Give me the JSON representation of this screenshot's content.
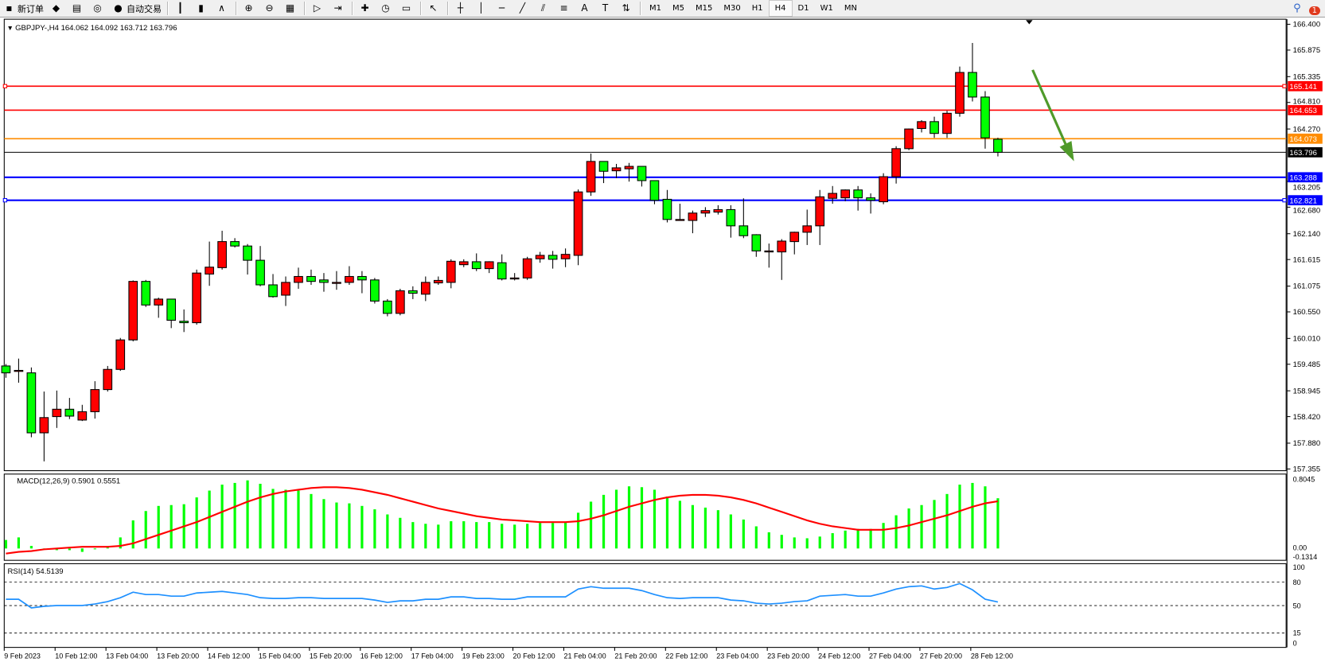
{
  "toolbar": {
    "items": [
      {
        "label": "新订单",
        "icon": "new-order-icon",
        "glyph": "▪"
      },
      {
        "label": "",
        "icon": "market-watch-icon",
        "glyph": "◆"
      },
      {
        "label": "",
        "icon": "data-window-icon",
        "glyph": "▤"
      },
      {
        "label": "",
        "icon": "signals-icon",
        "glyph": "◎"
      },
      {
        "label": "自动交易",
        "icon": "auto-trading-icon",
        "glyph": "●"
      },
      {
        "label": "",
        "icon": "bar-chart-icon",
        "glyph": "┃"
      },
      {
        "label": "",
        "icon": "candlestick-icon",
        "glyph": "▮"
      },
      {
        "label": "",
        "icon": "line-chart-icon",
        "glyph": "∧"
      },
      {
        "label": "",
        "icon": "zoom-in-icon",
        "glyph": "⊕"
      },
      {
        "label": "",
        "icon": "zoom-out-icon",
        "glyph": "⊖"
      },
      {
        "label": "",
        "icon": "tile-windows-icon",
        "glyph": "▦"
      },
      {
        "label": "",
        "icon": "auto-scroll-icon",
        "glyph": "▷"
      },
      {
        "label": "",
        "icon": "chart-shift-icon",
        "glyph": "⇥"
      },
      {
        "label": "",
        "icon": "indicators-icon",
        "glyph": "✚"
      },
      {
        "label": "",
        "icon": "periods-icon",
        "glyph": "◷"
      },
      {
        "label": "",
        "icon": "templates-icon",
        "glyph": "▭"
      },
      {
        "label": "",
        "icon": "cursor-icon",
        "glyph": "↖"
      },
      {
        "label": "",
        "icon": "crosshair-icon",
        "glyph": "┼"
      },
      {
        "label": "",
        "icon": "vertical-line-icon",
        "glyph": "│"
      },
      {
        "label": "",
        "icon": "horizontal-line-icon",
        "glyph": "─"
      },
      {
        "label": "",
        "icon": "trendline-icon",
        "glyph": "╱"
      },
      {
        "label": "",
        "icon": "equidistant-channel-icon",
        "glyph": "⫽"
      },
      {
        "label": "",
        "icon": "fibonacci-icon",
        "glyph": "≡"
      },
      {
        "label": "",
        "icon": "text-icon",
        "glyph": "A"
      },
      {
        "label": "",
        "icon": "text-label-icon",
        "glyph": "T"
      },
      {
        "label": "",
        "icon": "arrows-icon",
        "glyph": "⇅"
      }
    ],
    "timeframes": [
      "M1",
      "M5",
      "M15",
      "M30",
      "H1",
      "H4",
      "D1",
      "W1",
      "MN"
    ],
    "active_timeframe": "H4",
    "notification_count": "1"
  },
  "chart": {
    "header": "GBPJPY-,H4  164.062 164.092 163.712 163.796",
    "colors": {
      "up": "#ff0000",
      "down": "#00ff00",
      "outline": "#000000",
      "macd_hist": "#00ff00",
      "macd_signal": "#ff0000",
      "rsi": "#1e90ff",
      "arrow": "#4f9a2a"
    },
    "price_ticks": [
      "166.400",
      "165.875",
      "165.335",
      "164.810",
      "164.270",
      "163.205",
      "162.680",
      "162.140",
      "161.615",
      "161.075",
      "160.550",
      "160.010",
      "159.485",
      "158.945",
      "158.420",
      "157.880",
      "157.355"
    ],
    "price_range": [
      157.355,
      166.4
    ],
    "levels": [
      {
        "price": 165.141,
        "label": "165.141",
        "color": "#ff0000"
      },
      {
        "price": 164.653,
        "label": "164.653",
        "color": "#ff0000"
      },
      {
        "price": 164.073,
        "label": "164.073",
        "color": "#ff8c00"
      },
      {
        "price": 163.796,
        "label": "163.796",
        "color": "#000000"
      },
      {
        "price": 163.288,
        "label": "163.288",
        "color": "#0000ff"
      },
      {
        "price": 162.821,
        "label": "162.821",
        "color": "#0000ff"
      }
    ],
    "candles": [
      [
        159.45,
        159.49,
        159.21,
        159.31
      ],
      [
        159.36,
        159.6,
        159.11,
        159.36
      ],
      [
        159.31,
        159.42,
        158.0,
        158.09
      ],
      [
        158.09,
        158.93,
        157.51,
        158.4
      ],
      [
        158.42,
        158.95,
        158.19,
        158.57
      ],
      [
        158.57,
        158.8,
        158.37,
        158.43
      ],
      [
        158.35,
        158.66,
        158.33,
        158.52
      ],
      [
        158.52,
        159.14,
        158.38,
        158.97
      ],
      [
        158.97,
        159.45,
        158.93,
        159.38
      ],
      [
        159.38,
        160.02,
        159.35,
        159.98
      ],
      [
        159.98,
        161.19,
        159.95,
        161.17
      ],
      [
        161.17,
        161.2,
        160.65,
        160.69
      ],
      [
        160.69,
        160.84,
        160.43,
        160.81
      ],
      [
        160.81,
        160.81,
        160.22,
        160.38
      ],
      [
        160.36,
        160.6,
        160.14,
        160.33
      ],
      [
        160.33,
        161.41,
        160.29,
        161.34
      ],
      [
        161.32,
        161.98,
        161.08,
        161.46
      ],
      [
        161.45,
        162.2,
        161.41,
        161.98
      ],
      [
        161.98,
        162.05,
        161.86,
        161.89
      ],
      [
        161.89,
        161.93,
        161.31,
        161.6
      ],
      [
        161.6,
        161.89,
        161.07,
        161.1
      ],
      [
        161.1,
        161.32,
        160.84,
        160.86
      ],
      [
        160.89,
        161.27,
        160.67,
        161.15
      ],
      [
        161.15,
        161.45,
        161.02,
        161.27
      ],
      [
        161.27,
        161.41,
        161.1,
        161.17
      ],
      [
        161.2,
        161.34,
        160.96,
        161.15
      ],
      [
        161.15,
        161.38,
        161.0,
        161.15
      ],
      [
        161.15,
        161.48,
        161.1,
        161.27
      ],
      [
        161.27,
        161.38,
        160.93,
        161.2
      ],
      [
        161.2,
        161.24,
        160.72,
        160.77
      ],
      [
        160.77,
        160.81,
        160.46,
        160.52
      ],
      [
        160.52,
        161.02,
        160.48,
        160.98
      ],
      [
        160.98,
        161.07,
        160.81,
        160.93
      ],
      [
        160.91,
        161.27,
        160.77,
        161.15
      ],
      [
        161.14,
        161.27,
        161.1,
        161.19
      ],
      [
        161.15,
        161.62,
        161.03,
        161.58
      ],
      [
        161.51,
        161.62,
        161.46,
        161.57
      ],
      [
        161.57,
        161.74,
        161.38,
        161.43
      ],
      [
        161.43,
        161.58,
        161.34,
        161.57
      ],
      [
        161.55,
        161.72,
        161.19,
        161.22
      ],
      [
        161.24,
        161.34,
        161.19,
        161.24
      ],
      [
        161.24,
        161.67,
        161.2,
        161.63
      ],
      [
        161.63,
        161.77,
        161.55,
        161.7
      ],
      [
        161.7,
        161.79,
        161.43,
        161.62
      ],
      [
        161.63,
        161.84,
        161.46,
        161.72
      ],
      [
        161.7,
        163.04,
        161.5,
        162.99
      ],
      [
        162.99,
        163.77,
        162.91,
        163.61
      ],
      [
        163.61,
        163.61,
        163.17,
        163.41
      ],
      [
        163.42,
        163.56,
        163.27,
        163.48
      ],
      [
        163.46,
        163.58,
        163.2,
        163.51
      ],
      [
        163.51,
        163.51,
        163.1,
        163.22
      ],
      [
        163.22,
        163.22,
        162.74,
        162.82
      ],
      [
        162.84,
        163.03,
        162.37,
        162.43
      ],
      [
        162.43,
        162.75,
        162.41,
        162.43
      ],
      [
        162.41,
        162.61,
        162.15,
        162.56
      ],
      [
        162.56,
        162.68,
        162.48,
        162.61
      ],
      [
        162.58,
        162.72,
        162.53,
        162.63
      ],
      [
        162.63,
        162.72,
        162.06,
        162.3
      ],
      [
        162.3,
        162.86,
        162.05,
        162.1
      ],
      [
        162.12,
        162.13,
        161.67,
        161.79
      ],
      [
        161.79,
        161.94,
        161.45,
        161.79
      ],
      [
        161.77,
        162.03,
        161.2,
        161.99
      ],
      [
        161.98,
        162.18,
        161.72,
        162.17
      ],
      [
        162.17,
        162.63,
        161.91,
        162.3
      ],
      [
        162.3,
        163.03,
        161.91,
        162.89
      ],
      [
        162.86,
        163.11,
        162.75,
        162.96
      ],
      [
        162.87,
        163.04,
        162.8,
        163.03
      ],
      [
        163.03,
        163.11,
        162.61,
        162.87
      ],
      [
        162.87,
        162.96,
        162.55,
        162.82
      ],
      [
        162.79,
        163.37,
        162.74,
        163.3
      ],
      [
        163.3,
        163.92,
        163.16,
        163.87
      ],
      [
        163.87,
        164.28,
        163.84,
        164.27
      ],
      [
        164.28,
        164.45,
        164.2,
        164.42
      ],
      [
        164.42,
        164.52,
        164.09,
        164.18
      ],
      [
        164.18,
        164.64,
        164.09,
        164.59
      ],
      [
        164.59,
        165.54,
        164.52,
        165.42
      ],
      [
        165.42,
        166.02,
        164.83,
        164.92
      ],
      [
        164.92,
        165.04,
        163.87,
        164.09
      ],
      [
        164.062,
        164.092,
        163.712,
        163.796
      ]
    ],
    "macd": {
      "label": "MACD(12,26,9) 0.5901 0.5551",
      "ticks": [
        "0.8045",
        "0.00",
        "-0.1314"
      ],
      "range": [
        -0.1314,
        0.8045
      ],
      "histogram": [
        0.1,
        0.13,
        0.03,
        0.0,
        -0.02,
        -0.02,
        -0.04,
        0.0,
        0.01,
        0.13,
        0.33,
        0.44,
        0.5,
        0.51,
        0.52,
        0.6,
        0.68,
        0.75,
        0.77,
        0.8,
        0.76,
        0.7,
        0.69,
        0.68,
        0.64,
        0.58,
        0.54,
        0.53,
        0.5,
        0.46,
        0.4,
        0.36,
        0.31,
        0.29,
        0.28,
        0.32,
        0.32,
        0.31,
        0.31,
        0.29,
        0.28,
        0.29,
        0.3,
        0.3,
        0.31,
        0.42,
        0.55,
        0.63,
        0.69,
        0.73,
        0.72,
        0.69,
        0.61,
        0.56,
        0.51,
        0.48,
        0.45,
        0.4,
        0.34,
        0.26,
        0.19,
        0.16,
        0.13,
        0.12,
        0.14,
        0.18,
        0.21,
        0.23,
        0.23,
        0.3,
        0.39,
        0.47,
        0.51,
        0.57,
        0.64,
        0.75,
        0.77,
        0.73,
        0.5901
      ],
      "signal": [
        -0.06,
        -0.04,
        -0.03,
        -0.01,
        0.0,
        0.01,
        0.02,
        0.02,
        0.02,
        0.03,
        0.06,
        0.11,
        0.16,
        0.21,
        0.26,
        0.31,
        0.37,
        0.43,
        0.49,
        0.55,
        0.6,
        0.64,
        0.67,
        0.69,
        0.71,
        0.72,
        0.72,
        0.71,
        0.69,
        0.66,
        0.63,
        0.59,
        0.55,
        0.51,
        0.47,
        0.44,
        0.41,
        0.38,
        0.36,
        0.34,
        0.33,
        0.32,
        0.31,
        0.31,
        0.31,
        0.32,
        0.35,
        0.39,
        0.44,
        0.49,
        0.53,
        0.57,
        0.6,
        0.62,
        0.63,
        0.63,
        0.62,
        0.6,
        0.57,
        0.53,
        0.48,
        0.43,
        0.38,
        0.33,
        0.29,
        0.26,
        0.24,
        0.22,
        0.22,
        0.22,
        0.24,
        0.27,
        0.31,
        0.35,
        0.39,
        0.44,
        0.49,
        0.53,
        0.5551
      ]
    },
    "rsi": {
      "label": "RSI(14) 54.5139",
      "ticks": [
        "100",
        "80",
        "50",
        "15",
        "0"
      ],
      "levels": [
        80,
        50,
        15
      ],
      "values": [
        58,
        58,
        47,
        49,
        50,
        50,
        50,
        52,
        55,
        60,
        67,
        64,
        64,
        62,
        62,
        66,
        67,
        68,
        66,
        64,
        60,
        59,
        59,
        60,
        60,
        59,
        59,
        59,
        59,
        57,
        54,
        56,
        56,
        58,
        58,
        61,
        61,
        59,
        59,
        58,
        58,
        61,
        61,
        61,
        61,
        71,
        74,
        72,
        72,
        72,
        69,
        64,
        60,
        59,
        60,
        60,
        60,
        57,
        56,
        53,
        52,
        53,
        55,
        56,
        62,
        63,
        64,
        62,
        62,
        66,
        71,
        74,
        75,
        71,
        73,
        78,
        70,
        58,
        54.5139
      ]
    },
    "time_labels": [
      {
        "index": 0,
        "label": "9 Feb 2023"
      },
      {
        "index": 4,
        "label": "10 Feb 12:00"
      },
      {
        "index": 8,
        "label": "13 Feb 04:00"
      },
      {
        "index": 12,
        "label": "13 Feb 20:00"
      },
      {
        "index": 16,
        "label": "14 Feb 12:00"
      },
      {
        "index": 20,
        "label": "15 Feb 04:00"
      },
      {
        "index": 24,
        "label": "15 Feb 20:00"
      },
      {
        "index": 28,
        "label": "16 Feb 12:00"
      },
      {
        "index": 32,
        "label": "17 Feb 04:00"
      },
      {
        "index": 36,
        "label": "19 Feb 23:00"
      },
      {
        "index": 40,
        "label": "20 Feb 12:00"
      },
      {
        "index": 44,
        "label": "21 Feb 04:00"
      },
      {
        "index": 48,
        "label": "21 Feb 20:00"
      },
      {
        "index": 52,
        "label": "22 Feb 12:00"
      },
      {
        "index": 56,
        "label": "23 Feb 04:00"
      },
      {
        "index": 60,
        "label": "23 Feb 20:00"
      },
      {
        "index": 64,
        "label": "24 Feb 12:00"
      },
      {
        "index": 68,
        "label": "27 Feb 04:00"
      },
      {
        "index": 72,
        "label": "27 Feb 20:00"
      },
      {
        "index": 76,
        "label": "28 Feb 12:00"
      }
    ]
  }
}
